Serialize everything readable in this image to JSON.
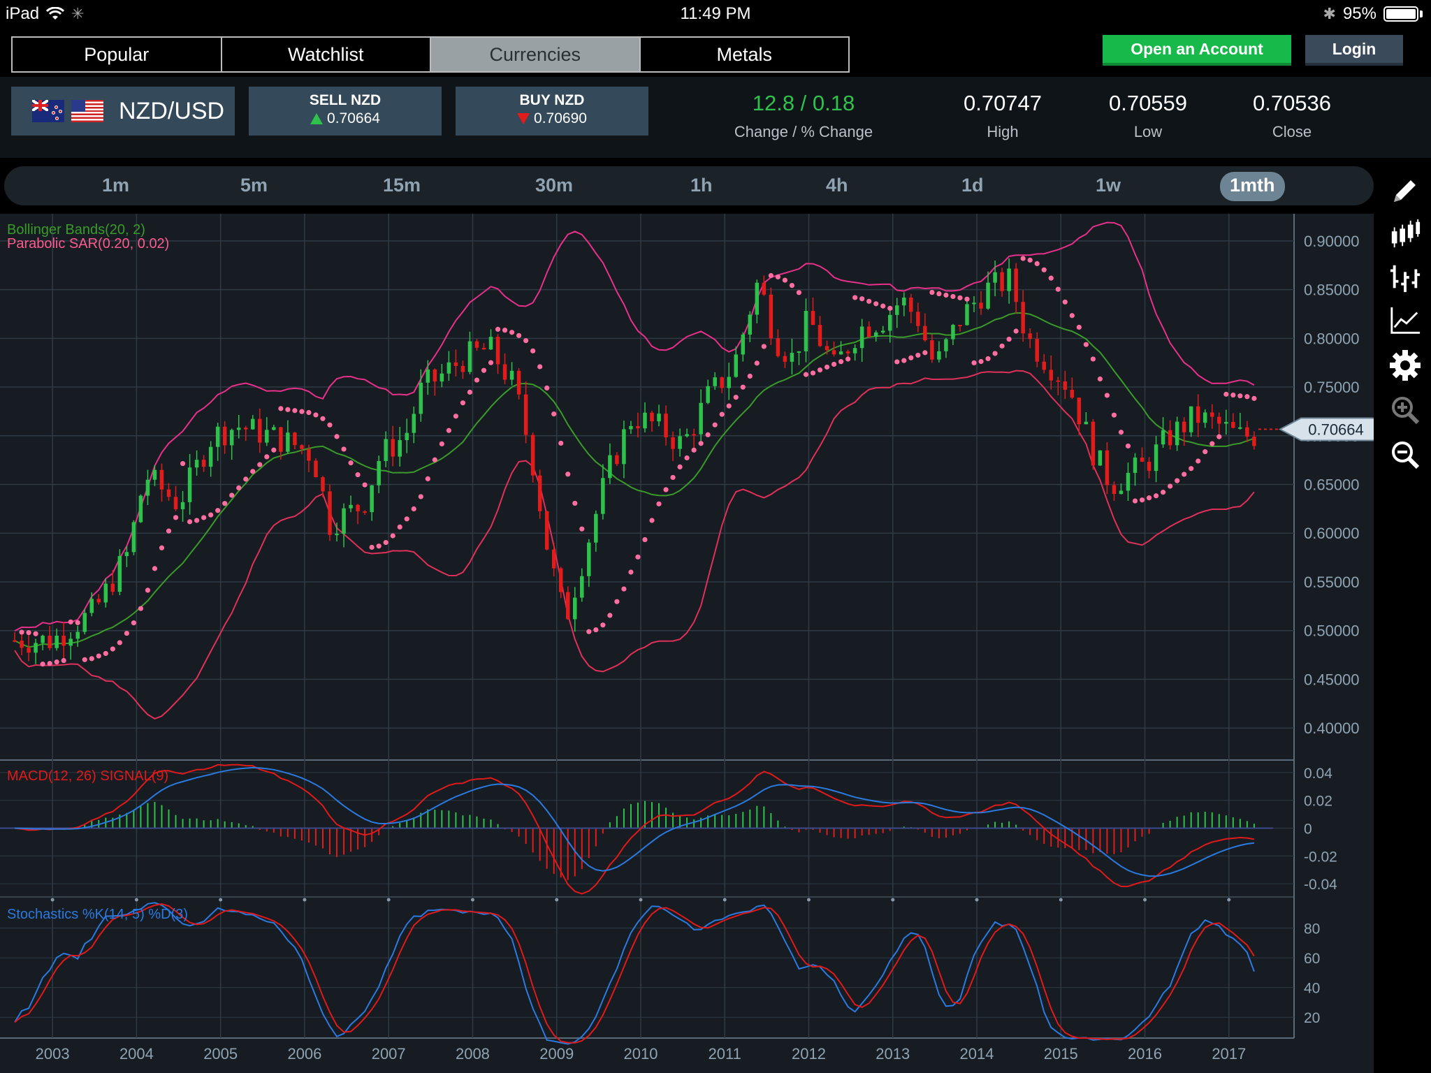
{
  "status_bar": {
    "device": "iPad",
    "time": "11:49 PM",
    "battery": "95%"
  },
  "nav_tabs": [
    {
      "label": "Popular",
      "active": false
    },
    {
      "label": "Watchlist",
      "active": false
    },
    {
      "label": "Currencies",
      "active": true
    },
    {
      "label": "Metals",
      "active": false
    }
  ],
  "header": {
    "open_account": "Open an Account",
    "login": "Login"
  },
  "instrument": {
    "pair": "NZD/USD",
    "sell_label": "SELL NZD",
    "sell_price": "0.70664",
    "buy_label": "BUY NZD",
    "buy_price": "0.70690",
    "change_value": "12.8 / 0.18",
    "change_label": "Change / % Change",
    "high_value": "0.70747",
    "high_label": "High",
    "low_value": "0.70559",
    "low_label": "Low",
    "close_value": "0.70536",
    "close_label": "Close"
  },
  "timeframes": [
    "1m",
    "5m",
    "15m",
    "30m",
    "1h",
    "4h",
    "1d",
    "1w",
    "1mth"
  ],
  "active_timeframe": "1mth",
  "tools": [
    "pencil-icon",
    "candlestick-icon",
    "bar-style-icon",
    "line-chart-icon",
    "gear-icon",
    "zoom-in-icon",
    "zoom-out-icon"
  ],
  "colors": {
    "green": "#2ec24c",
    "red": "#e21b1b",
    "sar": "#ff6ea0",
    "bb_upper": "#e8308a",
    "bb_mid": "#3a9a2a",
    "bb_lower": "#e0305a",
    "macd": "#e01a1a",
    "signal": "#2a7ae0"
  },
  "chart_data": [
    {
      "type": "candlestick",
      "indicators": [
        "Bollinger Bands(20, 2)",
        "Parabolic SAR(0.20, 0.02)"
      ],
      "x_labels": [
        "2003",
        "2004",
        "2005",
        "2006",
        "2007",
        "2008",
        "2009",
        "2010",
        "2011",
        "2012",
        "2013",
        "2014",
        "2015",
        "2016",
        "2017"
      ],
      "y_ticks": [
        "0.90000",
        "0.85000",
        "0.80000",
        "0.75000",
        "0.70000",
        "0.65000",
        "0.60000",
        "0.55000",
        "0.50000",
        "0.45000",
        "0.40000"
      ],
      "ylim": [
        0.37,
        0.925
      ],
      "last_price": "0.70664",
      "price_path": [
        [
          2003.0,
          0.49
        ],
        [
          2003.5,
          0.52
        ],
        [
          2003.9,
          0.58
        ],
        [
          2004.1,
          0.66
        ],
        [
          2004.5,
          0.63
        ],
        [
          2004.9,
          0.7
        ],
        [
          2005.2,
          0.71
        ],
        [
          2005.6,
          0.7
        ],
        [
          2005.9,
          0.69
        ],
        [
          2006.1,
          0.68
        ],
        [
          2006.3,
          0.61
        ],
        [
          2006.7,
          0.63
        ],
        [
          2006.9,
          0.68
        ],
        [
          2007.2,
          0.7
        ],
        [
          2007.4,
          0.75
        ],
        [
          2007.6,
          0.76
        ],
        [
          2007.9,
          0.78
        ],
        [
          2008.2,
          0.79
        ],
        [
          2008.5,
          0.75
        ],
        [
          2008.7,
          0.68
        ],
        [
          2008.9,
          0.58
        ],
        [
          2009.1,
          0.51
        ],
        [
          2009.3,
          0.57
        ],
        [
          2009.6,
          0.66
        ],
        [
          2009.9,
          0.72
        ],
        [
          2010.2,
          0.71
        ],
        [
          2010.5,
          0.69
        ],
        [
          2010.8,
          0.74
        ],
        [
          2011.1,
          0.77
        ],
        [
          2011.4,
          0.86
        ],
        [
          2011.6,
          0.8
        ],
        [
          2011.8,
          0.78
        ],
        [
          2012.0,
          0.82
        ],
        [
          2012.3,
          0.77
        ],
        [
          2012.6,
          0.81
        ],
        [
          2012.9,
          0.82
        ],
        [
          2013.1,
          0.84
        ],
        [
          2013.3,
          0.82
        ],
        [
          2013.5,
          0.77
        ],
        [
          2013.8,
          0.82
        ],
        [
          2014.1,
          0.85
        ],
        [
          2014.4,
          0.86
        ],
        [
          2014.6,
          0.8
        ],
        [
          2014.9,
          0.77
        ],
        [
          2015.1,
          0.75
        ],
        [
          2015.4,
          0.68
        ],
        [
          2015.6,
          0.65
        ],
        [
          2015.8,
          0.66
        ],
        [
          2016.0,
          0.67
        ],
        [
          2016.3,
          0.7
        ],
        [
          2016.6,
          0.72
        ],
        [
          2016.9,
          0.71
        ],
        [
          2017.1,
          0.7
        ],
        [
          2017.3,
          0.7
        ]
      ]
    },
    {
      "type": "line",
      "title": "MACD(12, 26) SIGNAL(9)",
      "y_ticks": [
        "0.04",
        "0.02",
        "0",
        "-0.02",
        "-0.04"
      ],
      "ylim": [
        -0.048,
        0.048
      ]
    },
    {
      "type": "line",
      "title": "Stochastics %K(14, 5) %D(3)",
      "y_ticks": [
        "80",
        "60",
        "40",
        "20"
      ],
      "ylim": [
        6,
        100
      ]
    }
  ]
}
